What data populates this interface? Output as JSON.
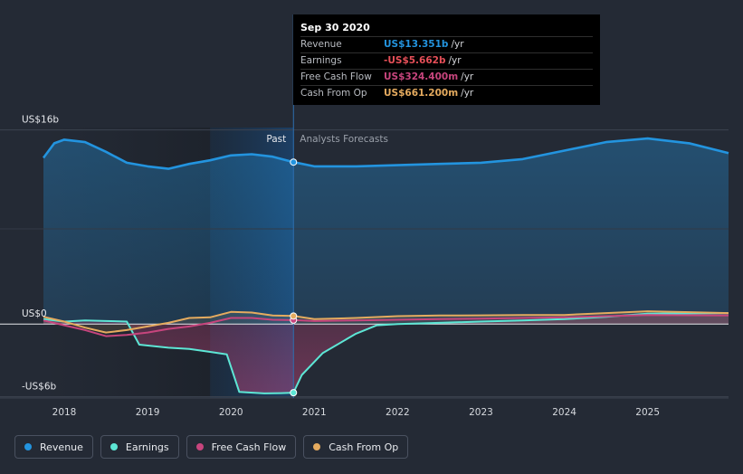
{
  "tooltip": {
    "date": "Sep 30 2020",
    "rows": [
      {
        "label": "Revenue",
        "value": "US$13.351b",
        "unit": "/yr",
        "color": "#2394df"
      },
      {
        "label": "Earnings",
        "value": "-US$5.662b",
        "unit": "/yr",
        "color": "#e64f58"
      },
      {
        "label": "Free Cash Flow",
        "value": "US$324.400m",
        "unit": "/yr",
        "color": "#c7457d"
      },
      {
        "label": "Cash From Op",
        "value": "US$661.200m",
        "unit": "/yr",
        "color": "#e5ab5f"
      }
    ]
  },
  "labels": {
    "past": "Past",
    "forecast": "Analysts Forecasts"
  },
  "legend": [
    {
      "label": "Revenue",
      "color": "#2394df"
    },
    {
      "label": "Earnings",
      "color": "#5de6d5"
    },
    {
      "label": "Free Cash Flow",
      "color": "#c7457d"
    },
    {
      "label": "Cash From Op",
      "color": "#e5ab5f"
    }
  ],
  "chart_data": {
    "type": "line",
    "title": "",
    "xlabel": "",
    "ylabel": "",
    "unit": "US$b",
    "x_ticks": [
      2018,
      2019,
      2020,
      2021,
      2022,
      2023,
      2024,
      2025
    ],
    "x_tick_labels": [
      "2018",
      "2019",
      "2020",
      "2021",
      "2022",
      "2023",
      "2024",
      "2025"
    ],
    "xlim": [
      2017.75,
      2025.97
    ],
    "y_ticks": [
      16,
      0,
      -6
    ],
    "y_tick_labels": [
      "US$16b",
      "US$0",
      "-US$6b"
    ],
    "ylim": [
      -6.1,
      16.2
    ],
    "past_end": 2020.75,
    "highlight_start": 2019.75,
    "highlight_end": 2020.75,
    "series": [
      {
        "name": "Revenue",
        "color": "#2394df",
        "points": [
          [
            2017.75,
            13.7
          ],
          [
            2017.88,
            14.9
          ],
          [
            2018.0,
            15.2
          ],
          [
            2018.25,
            15.0
          ],
          [
            2018.5,
            14.2
          ],
          [
            2018.75,
            13.3
          ],
          [
            2019.0,
            13.0
          ],
          [
            2019.25,
            12.8
          ],
          [
            2019.5,
            13.2
          ],
          [
            2019.75,
            13.5
          ],
          [
            2020.0,
            13.9
          ],
          [
            2020.25,
            14.0
          ],
          [
            2020.5,
            13.8
          ],
          [
            2020.75,
            13.351
          ],
          [
            2021.0,
            13.0
          ],
          [
            2021.5,
            13.0
          ],
          [
            2022.0,
            13.1
          ],
          [
            2022.5,
            13.2
          ],
          [
            2023.0,
            13.3
          ],
          [
            2023.5,
            13.6
          ],
          [
            2024.0,
            14.3
          ],
          [
            2024.5,
            15.0
          ],
          [
            2025.0,
            15.3
          ],
          [
            2025.5,
            14.9
          ],
          [
            2025.97,
            14.1
          ]
        ]
      },
      {
        "name": "Earnings",
        "color": "#5de6d5",
        "points": [
          [
            2017.75,
            0.4
          ],
          [
            2018.0,
            0.2
          ],
          [
            2018.25,
            0.3
          ],
          [
            2018.5,
            0.25
          ],
          [
            2018.75,
            0.2
          ],
          [
            2018.9,
            -1.7
          ],
          [
            2019.25,
            -1.95
          ],
          [
            2019.5,
            -2.05
          ],
          [
            2019.75,
            -2.3
          ],
          [
            2019.95,
            -2.5
          ],
          [
            2020.1,
            -5.6
          ],
          [
            2020.4,
            -5.72
          ],
          [
            2020.6,
            -5.7
          ],
          [
            2020.75,
            -5.662
          ],
          [
            2020.85,
            -4.2
          ],
          [
            2021.1,
            -2.4
          ],
          [
            2021.5,
            -0.8
          ],
          [
            2021.75,
            -0.1
          ],
          [
            2022.0,
            0.0
          ],
          [
            2022.5,
            0.1
          ],
          [
            2023.0,
            0.2
          ],
          [
            2023.5,
            0.3
          ],
          [
            2024.0,
            0.4
          ],
          [
            2024.5,
            0.6
          ],
          [
            2025.0,
            0.85
          ],
          [
            2025.97,
            0.9
          ]
        ]
      },
      {
        "name": "Free Cash Flow",
        "color": "#c7457d",
        "points": [
          [
            2017.75,
            0.3
          ],
          [
            2018.0,
            -0.1
          ],
          [
            2018.25,
            -0.5
          ],
          [
            2018.5,
            -1.0
          ],
          [
            2018.75,
            -0.9
          ],
          [
            2019.0,
            -0.7
          ],
          [
            2019.25,
            -0.4
          ],
          [
            2019.5,
            -0.2
          ],
          [
            2019.75,
            0.1
          ],
          [
            2020.0,
            0.5
          ],
          [
            2020.25,
            0.5
          ],
          [
            2020.5,
            0.35
          ],
          [
            2020.75,
            0.324
          ],
          [
            2021.0,
            0.25
          ],
          [
            2021.5,
            0.3
          ],
          [
            2022.0,
            0.35
          ],
          [
            2022.5,
            0.4
          ],
          [
            2023.0,
            0.45
          ],
          [
            2023.5,
            0.5
          ],
          [
            2024.0,
            0.55
          ],
          [
            2024.5,
            0.65
          ],
          [
            2025.0,
            0.75
          ],
          [
            2025.97,
            0.7
          ]
        ]
      },
      {
        "name": "Cash From Op",
        "color": "#e5ab5f",
        "points": [
          [
            2017.75,
            0.6
          ],
          [
            2018.0,
            0.2
          ],
          [
            2018.25,
            -0.3
          ],
          [
            2018.5,
            -0.7
          ],
          [
            2018.75,
            -0.5
          ],
          [
            2019.0,
            -0.2
          ],
          [
            2019.25,
            0.1
          ],
          [
            2019.5,
            0.5
          ],
          [
            2019.75,
            0.55
          ],
          [
            2020.0,
            1.0
          ],
          [
            2020.25,
            0.95
          ],
          [
            2020.5,
            0.7
          ],
          [
            2020.75,
            0.661
          ],
          [
            2021.0,
            0.4
          ],
          [
            2021.5,
            0.5
          ],
          [
            2022.0,
            0.65
          ],
          [
            2022.5,
            0.7
          ],
          [
            2023.0,
            0.72
          ],
          [
            2023.5,
            0.75
          ],
          [
            2024.0,
            0.75
          ],
          [
            2024.5,
            0.9
          ],
          [
            2025.0,
            1.05
          ],
          [
            2025.97,
            0.9
          ]
        ]
      }
    ]
  }
}
